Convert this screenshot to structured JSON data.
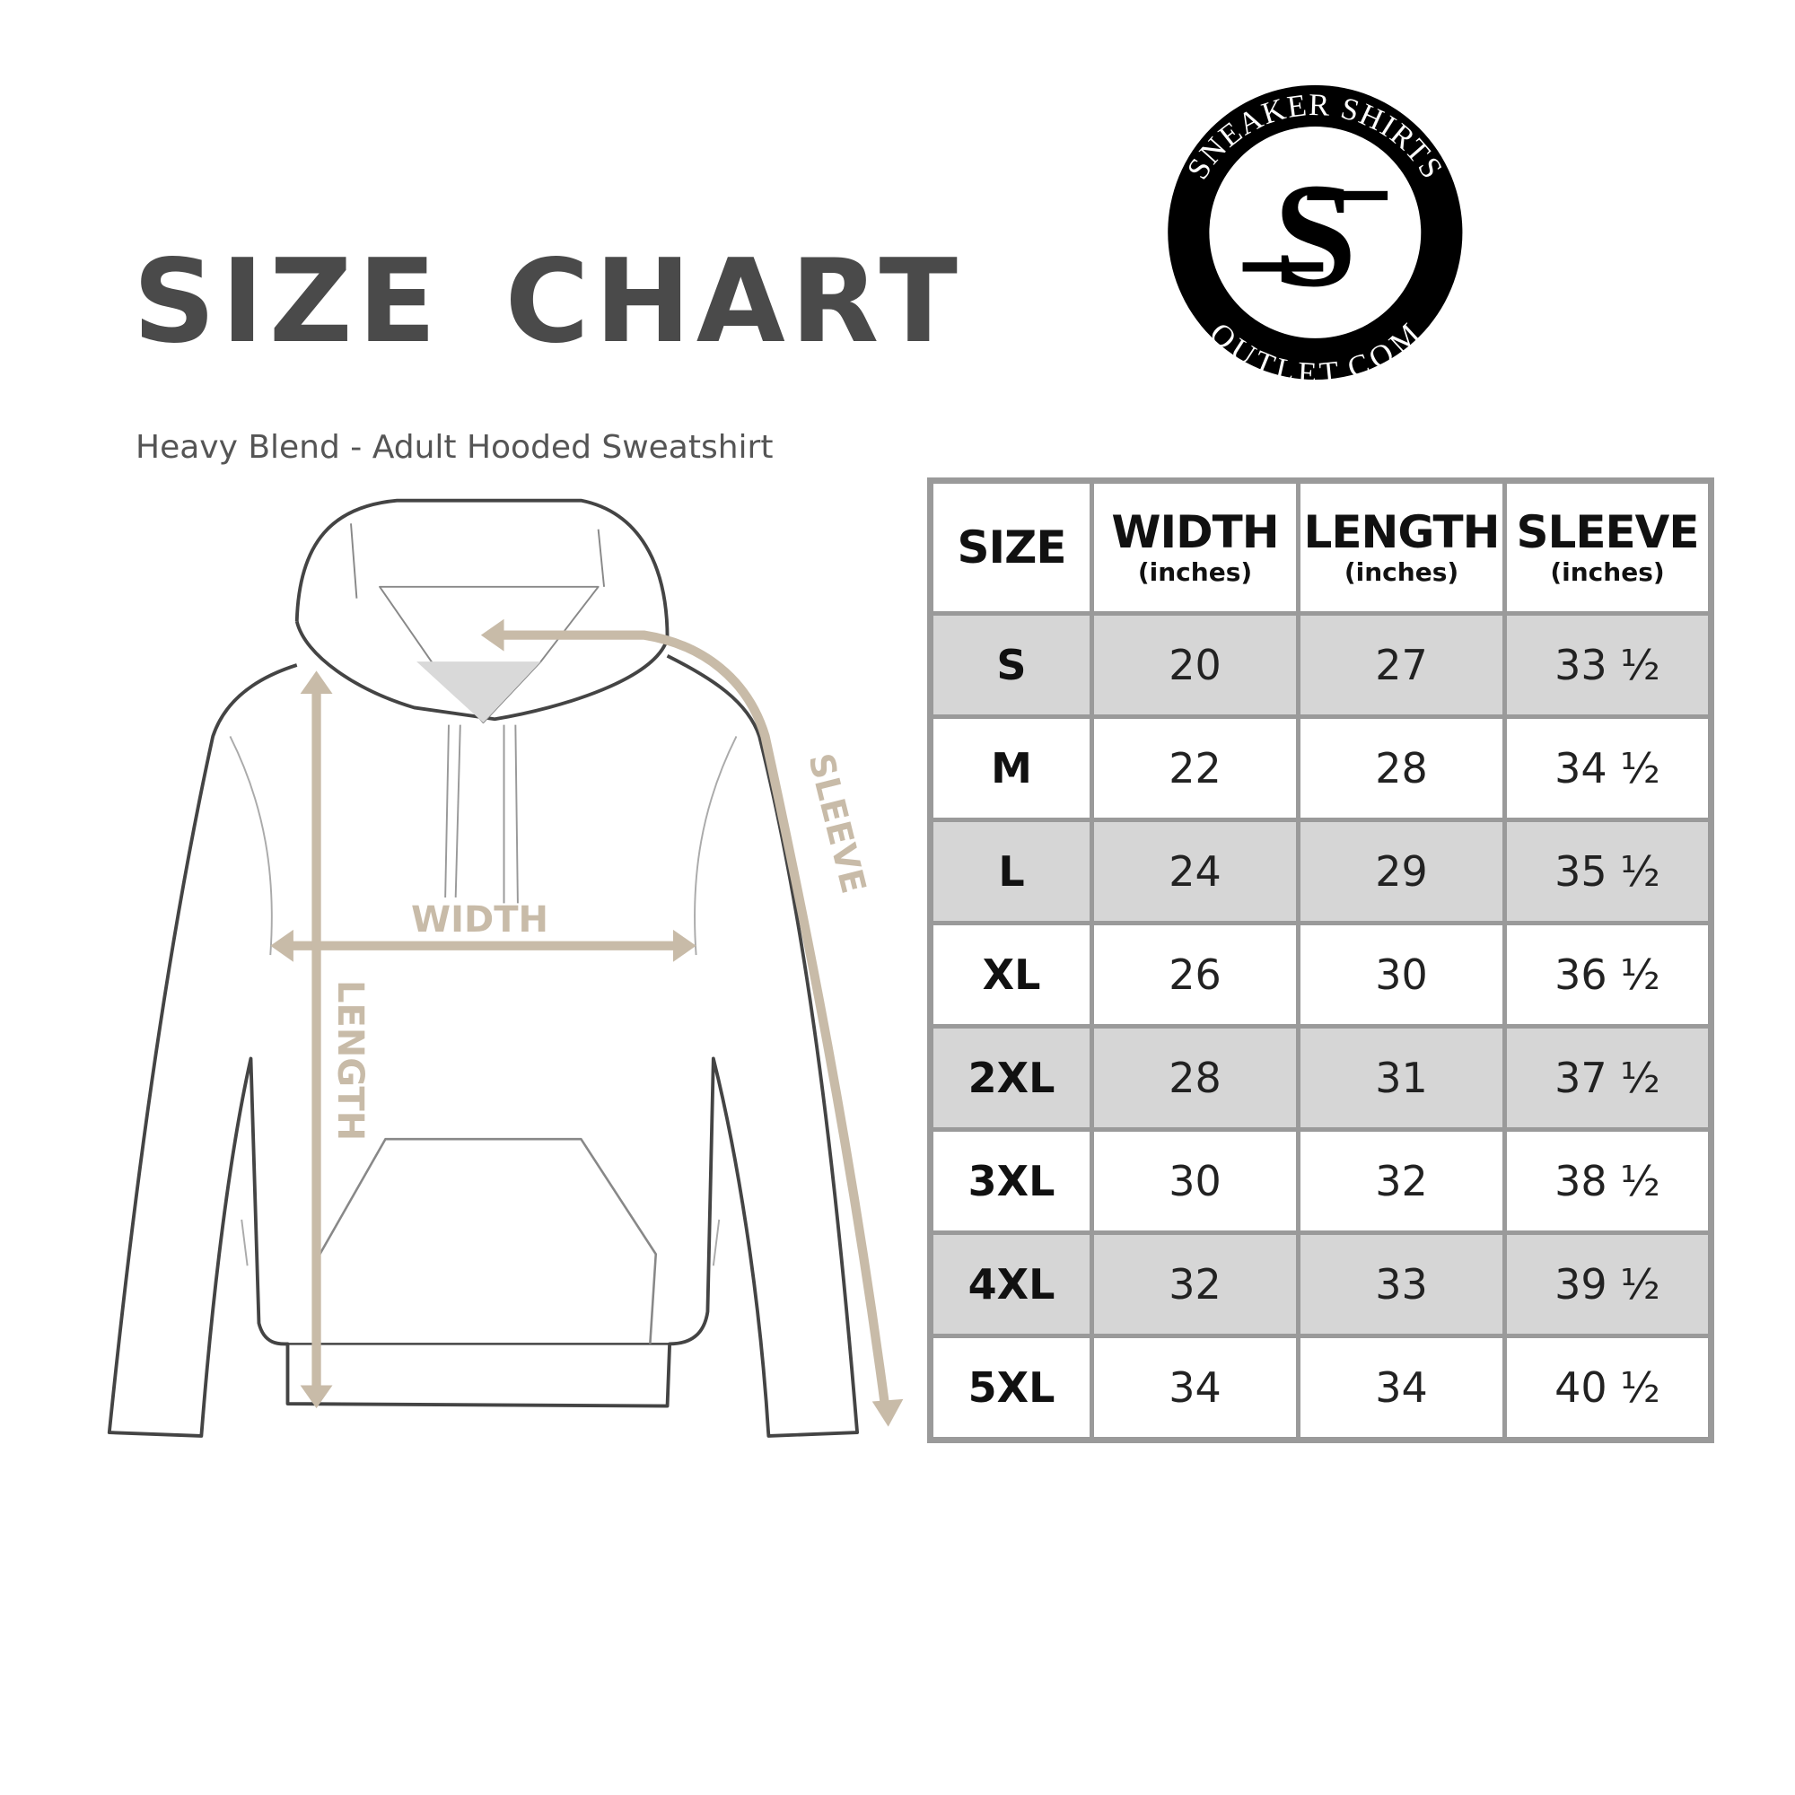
{
  "header": {
    "title": "SIZE CHART",
    "subtitle": "Heavy Blend - Adult Hooded Sweatshirt"
  },
  "logo": {
    "text_top": "SNEAKER SHIRTS",
    "text_bottom": "OUTLET.COM",
    "monogram": "SS"
  },
  "diagram": {
    "labels": {
      "width": "WIDTH",
      "length": "LENGTH",
      "sleeve": "SLEEVE"
    },
    "arrow_color": "#c8bba8"
  },
  "table": {
    "columns": [
      {
        "label": "SIZE",
        "unit": ""
      },
      {
        "label": "WIDTH",
        "unit": "(inches)"
      },
      {
        "label": "LENGTH",
        "unit": "(inches)"
      },
      {
        "label": "SLEEVE",
        "unit": "(inches)"
      }
    ],
    "rows": [
      [
        "S",
        "20",
        "27",
        "33 ½"
      ],
      [
        "M",
        "22",
        "28",
        "34 ½"
      ],
      [
        "L",
        "24",
        "29",
        "35 ½"
      ],
      [
        "XL",
        "26",
        "30",
        "36 ½"
      ],
      [
        "2XL",
        "28",
        "31",
        "37 ½"
      ],
      [
        "3XL",
        "30",
        "32",
        "38 ½"
      ],
      [
        "4XL",
        "32",
        "33",
        "39 ½"
      ],
      [
        "5XL",
        "34",
        "34",
        "40 ½"
      ]
    ]
  }
}
